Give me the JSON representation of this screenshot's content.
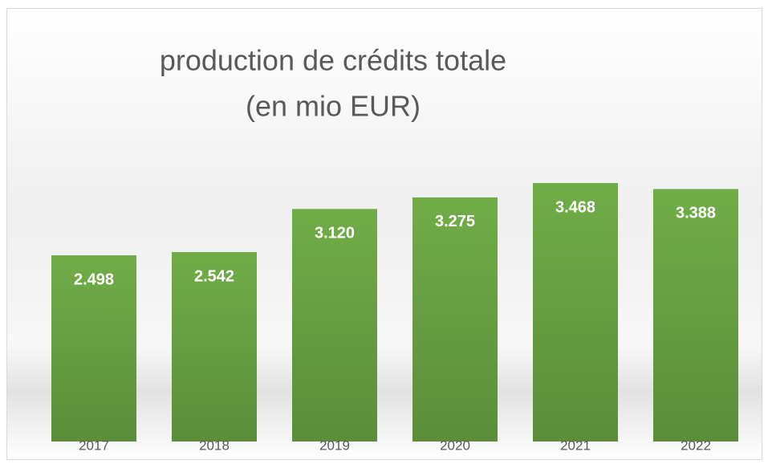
{
  "chart_data": {
    "type": "bar",
    "title": "production de crédits totale",
    "subtitle": "(en mio EUR)",
    "categories": [
      "2017",
      "2018",
      "2019",
      "2020",
      "2021",
      "2022"
    ],
    "values": [
      2498,
      2542,
      3120,
      3275,
      3468,
      3388
    ],
    "value_labels": [
      "2.498",
      "2.542",
      "3.120",
      "3.275",
      "3.468",
      "3.388"
    ],
    "color": "#70ad47"
  }
}
